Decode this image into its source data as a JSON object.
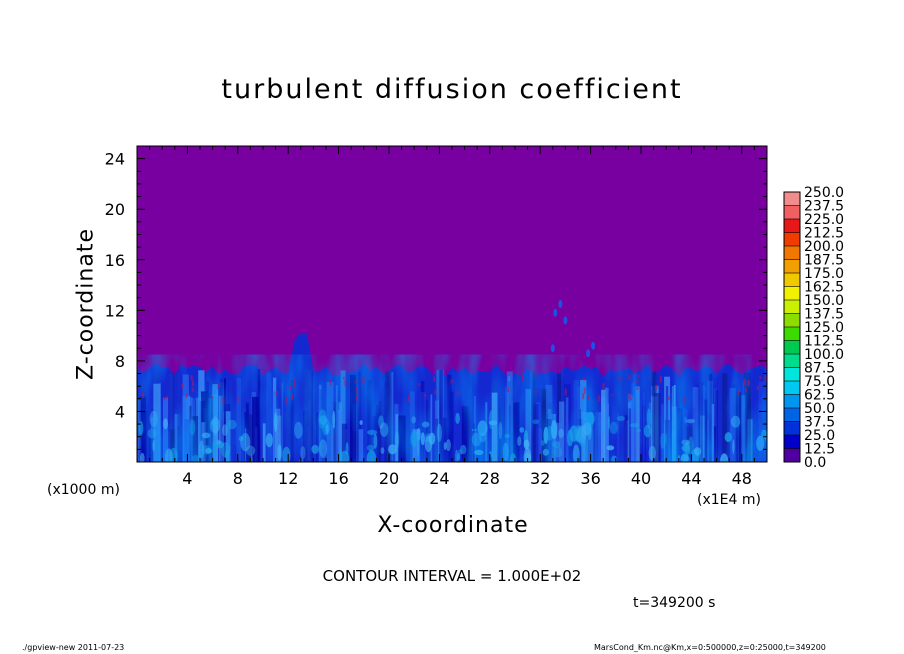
{
  "chart_data": {
    "type": "heatmap",
    "title": "turbulent diffusion coefficient",
    "xlabel": "X-coordinate",
    "ylabel": "Z-coordinate",
    "x_unit_left": "(x1000 m)",
    "x_unit_right": "(x1E4 m)",
    "xlim": [
      0,
      50
    ],
    "ylim": [
      0,
      25
    ],
    "x_ticks": [
      4,
      8,
      12,
      16,
      20,
      24,
      28,
      32,
      36,
      40,
      44,
      48
    ],
    "y_ticks": [
      4,
      8,
      12,
      16,
      20,
      24
    ],
    "colorbar": {
      "levels": [
        "250.0",
        "237.5",
        "225.0",
        "212.5",
        "200.0",
        "187.5",
        "175.0",
        "162.5",
        "150.0",
        "137.5",
        "125.0",
        "112.5",
        "100.0",
        "87.5",
        "75.0",
        "62.5",
        "50.0",
        "37.5",
        "25.0",
        "12.5",
        "0.0"
      ],
      "colors": [
        "#f08c8c",
        "#f06060",
        "#e81818",
        "#f03c00",
        "#f07800",
        "#f0a000",
        "#f0c800",
        "#f0f000",
        "#c8f000",
        "#8cdc00",
        "#3cdc00",
        "#00c850",
        "#00dc8c",
        "#00e6dc",
        "#00c8f0",
        "#0096f0",
        "#0064e6",
        "#0032dc",
        "#0000c8",
        "#5000a0"
      ]
    },
    "background_value_color": "#7800a0",
    "turbulent_layer_top_approx": 7,
    "contour_interval": "CONTOUR INTERVAL = 1.000E+02",
    "time": "t=349200 s"
  },
  "footer": {
    "left": "./gpview-new   2011-07-23",
    "right": "MarsCond_Km.nc@Km,x=0:500000,z=0:25000,t=349200"
  }
}
